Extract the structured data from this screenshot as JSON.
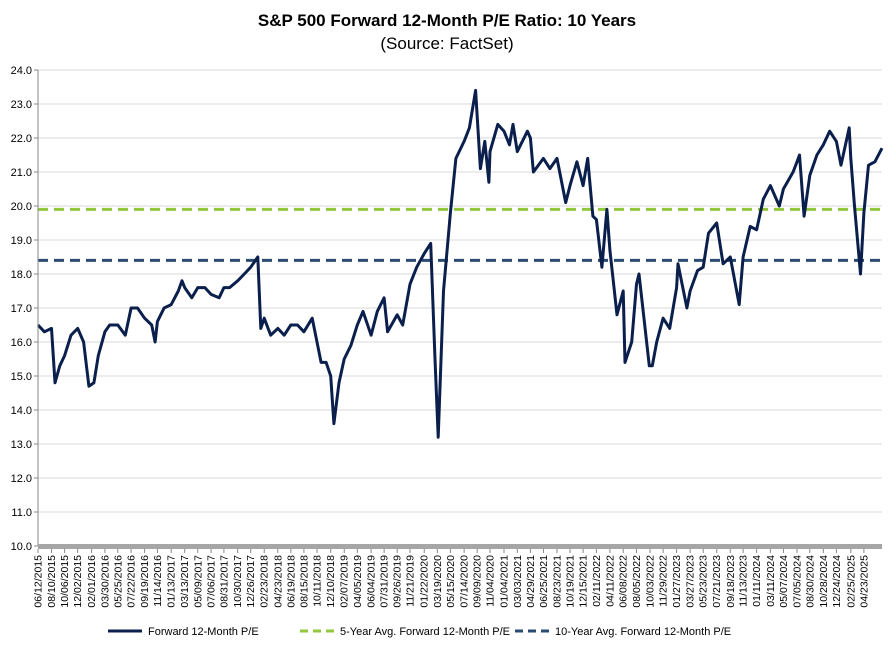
{
  "chart_data": {
    "type": "line",
    "title": "S&P 500 Forward 12-Month P/E Ratio: 10 Years",
    "subtitle": "(Source: FactSet)",
    "xlabel": "",
    "ylabel": "",
    "ylim": [
      10.0,
      24.0
    ],
    "y_ticks": [
      "10.0",
      "11.0",
      "12.0",
      "13.0",
      "14.0",
      "15.0",
      "16.0",
      "17.0",
      "18.0",
      "19.0",
      "20.0",
      "21.0",
      "22.0",
      "23.0",
      "24.0"
    ],
    "x_range": [
      "06/12/2015",
      "07/11/2025"
    ],
    "x_ticks": [
      "06/12/2015",
      "08/10/2015",
      "10/06/2015",
      "12/02/2015",
      "02/01/2016",
      "03/30/2016",
      "05/25/2016",
      "07/22/2016",
      "09/19/2016",
      "11/14/2016",
      "01/13/2017",
      "03/13/2017",
      "05/09/2017",
      "07/06/2017",
      "08/31/2017",
      "10/30/2017",
      "12/26/2017",
      "02/23/2018",
      "04/23/2018",
      "06/19/2018",
      "08/15/2018",
      "10/11/2018",
      "12/10/2018",
      "02/07/2019",
      "04/05/2019",
      "06/04/2019",
      "07/31/2019",
      "09/26/2019",
      "11/21/2019",
      "01/22/2020",
      "03/19/2020",
      "05/15/2020",
      "07/14/2020",
      "09/09/2020",
      "11/04/2020",
      "01/04/2021",
      "03/03/2021",
      "04/29/2021",
      "06/25/2021",
      "08/23/2021",
      "10/19/2021",
      "12/15/2021",
      "02/11/2022",
      "04/11/2022",
      "06/08/2022",
      "08/05/2022",
      "10/03/2022",
      "11/29/2022",
      "01/27/2023",
      "03/27/2023",
      "05/23/2023",
      "07/21/2023",
      "09/18/2023",
      "11/13/2023",
      "01/11/2024",
      "03/11/2024",
      "05/07/2024",
      "07/05/2024",
      "08/30/2024",
      "10/28/2024",
      "12/24/2024",
      "02/25/2025",
      "04/23/2025"
    ],
    "grid": "horizontal",
    "legend_position": "bottom",
    "series": [
      {
        "name": "Forward 12-Month P/E",
        "color": "#0b1f4d",
        "style": "solid",
        "points": [
          [
            "06/12/2015",
            16.5
          ],
          [
            "07/10/2015",
            16.3
          ],
          [
            "08/10/2015",
            16.4
          ],
          [
            "08/25/2015",
            14.8
          ],
          [
            "09/15/2015",
            15.3
          ],
          [
            "10/06/2015",
            15.6
          ],
          [
            "11/03/2015",
            16.2
          ],
          [
            "12/02/2015",
            16.4
          ],
          [
            "12/28/2015",
            16.0
          ],
          [
            "01/20/2016",
            14.7
          ],
          [
            "02/11/2016",
            14.8
          ],
          [
            "03/01/2016",
            15.6
          ],
          [
            "03/30/2016",
            16.3
          ],
          [
            "04/20/2016",
            16.5
          ],
          [
            "05/25/2016",
            16.5
          ],
          [
            "06/27/2016",
            16.2
          ],
          [
            "07/22/2016",
            17.0
          ],
          [
            "08/19/2016",
            17.0
          ],
          [
            "09/19/2016",
            16.7
          ],
          [
            "10/20/2016",
            16.5
          ],
          [
            "11/04/2016",
            16.0
          ],
          [
            "11/14/2016",
            16.6
          ],
          [
            "12/13/2016",
            17.0
          ],
          [
            "01/13/2017",
            17.1
          ],
          [
            "02/13/2017",
            17.5
          ],
          [
            "03/01/2017",
            17.8
          ],
          [
            "03/13/2017",
            17.6
          ],
          [
            "04/13/2017",
            17.3
          ],
          [
            "05/09/2017",
            17.6
          ],
          [
            "06/09/2017",
            17.6
          ],
          [
            "07/06/2017",
            17.4
          ],
          [
            "08/10/2017",
            17.3
          ],
          [
            "08/31/2017",
            17.6
          ],
          [
            "09/25/2017",
            17.6
          ],
          [
            "10/30/2017",
            17.8
          ],
          [
            "11/28/2017",
            18.0
          ],
          [
            "12/26/2017",
            18.2
          ],
          [
            "01/26/2018",
            18.5
          ],
          [
            "02/08/2018",
            16.4
          ],
          [
            "02/23/2018",
            16.7
          ],
          [
            "03/23/2018",
            16.2
          ],
          [
            "04/23/2018",
            16.4
          ],
          [
            "05/21/2018",
            16.2
          ],
          [
            "06/19/2018",
            16.5
          ],
          [
            "07/18/2018",
            16.5
          ],
          [
            "08/15/2018",
            16.3
          ],
          [
            "09/20/2018",
            16.7
          ],
          [
            "10/11/2018",
            16.0
          ],
          [
            "10/29/2018",
            15.4
          ],
          [
            "11/20/2018",
            15.4
          ],
          [
            "12/10/2018",
            15.0
          ],
          [
            "12/24/2018",
            13.6
          ],
          [
            "01/15/2019",
            14.8
          ],
          [
            "02/07/2019",
            15.5
          ],
          [
            "03/08/2019",
            15.9
          ],
          [
            "04/05/2019",
            16.5
          ],
          [
            "04/30/2019",
            16.9
          ],
          [
            "06/04/2019",
            16.2
          ],
          [
            "07/01/2019",
            16.9
          ],
          [
            "07/31/2019",
            17.3
          ],
          [
            "08/15/2019",
            16.3
          ],
          [
            "09/26/2019",
            16.8
          ],
          [
            "10/20/2019",
            16.5
          ],
          [
            "11/21/2019",
            17.7
          ],
          [
            "12/20/2019",
            18.2
          ],
          [
            "01/22/2020",
            18.6
          ],
          [
            "02/19/2020",
            18.9
          ],
          [
            "03/09/2020",
            15.5
          ],
          [
            "03/23/2020",
            13.2
          ],
          [
            "04/15/2020",
            17.5
          ],
          [
            "05/15/2020",
            19.8
          ],
          [
            "06/08/2020",
            21.4
          ],
          [
            "07/14/2020",
            21.9
          ],
          [
            "08/06/2020",
            22.3
          ],
          [
            "09/02/2020",
            23.4
          ],
          [
            "09/23/2020",
            21.1
          ],
          [
            "10/12/2020",
            21.9
          ],
          [
            "10/30/2020",
            20.7
          ],
          [
            "11/04/2020",
            21.6
          ],
          [
            "12/08/2020",
            22.4
          ],
          [
            "01/04/2021",
            22.2
          ],
          [
            "01/28/2021",
            21.8
          ],
          [
            "02/12/2021",
            22.4
          ],
          [
            "03/03/2021",
            21.6
          ],
          [
            "04/16/2021",
            22.2
          ],
          [
            "04/29/2021",
            22.0
          ],
          [
            "05/12/2021",
            21.0
          ],
          [
            "06/25/2021",
            21.4
          ],
          [
            "07/23/2021",
            21.1
          ],
          [
            "08/23/2021",
            21.4
          ],
          [
            "09/30/2021",
            20.1
          ],
          [
            "10/19/2021",
            20.6
          ],
          [
            "11/18/2021",
            21.3
          ],
          [
            "12/15/2021",
            20.6
          ],
          [
            "01/04/2022",
            21.4
          ],
          [
            "01/27/2022",
            19.7
          ],
          [
            "02/11/2022",
            19.6
          ],
          [
            "03/07/2022",
            18.2
          ],
          [
            "03/29/2022",
            19.9
          ],
          [
            "04/11/2022",
            18.7
          ],
          [
            "05/12/2022",
            16.8
          ],
          [
            "06/08/2022",
            17.5
          ],
          [
            "06/16/2022",
            15.4
          ],
          [
            "07/15/2022",
            16.0
          ],
          [
            "08/05/2022",
            17.7
          ],
          [
            "08/16/2022",
            18.0
          ],
          [
            "09/30/2022",
            15.3
          ],
          [
            "10/13/2022",
            15.3
          ],
          [
            "11/01/2022",
            16.0
          ],
          [
            "11/29/2022",
            16.7
          ],
          [
            "12/28/2022",
            16.4
          ],
          [
            "01/27/2023",
            17.6
          ],
          [
            "02/02/2023",
            18.3
          ],
          [
            "03/13/2023",
            17.0
          ],
          [
            "03/27/2023",
            17.5
          ],
          [
            "04/28/2023",
            18.1
          ],
          [
            "05/23/2023",
            18.2
          ],
          [
            "06/15/2023",
            19.2
          ],
          [
            "07/21/2023",
            19.5
          ],
          [
            "08/18/2023",
            18.3
          ],
          [
            "09/18/2023",
            18.5
          ],
          [
            "10/27/2023",
            17.1
          ],
          [
            "11/13/2023",
            18.5
          ],
          [
            "12/14/2023",
            19.4
          ],
          [
            "01/11/2024",
            19.3
          ],
          [
            "02/09/2024",
            20.2
          ],
          [
            "03/11/2024",
            20.6
          ],
          [
            "04/19/2024",
            20.0
          ],
          [
            "05/07/2024",
            20.5
          ],
          [
            "06/18/2024",
            21.0
          ],
          [
            "07/05/2024",
            21.3
          ],
          [
            "07/16/2024",
            21.5
          ],
          [
            "08/05/2024",
            19.7
          ],
          [
            "08/30/2024",
            20.9
          ],
          [
            "09/30/2024",
            21.5
          ],
          [
            "10/28/2024",
            21.8
          ],
          [
            "11/25/2024",
            22.2
          ],
          [
            "12/24/2024",
            21.9
          ],
          [
            "01/13/2025",
            21.2
          ],
          [
            "02/18/2025",
            22.3
          ],
          [
            "02/25/2025",
            21.4
          ],
          [
            "03/13/2025",
            20.0
          ],
          [
            "04/08/2025",
            18.0
          ],
          [
            "04/23/2025",
            19.8
          ],
          [
            "05/13/2025",
            21.2
          ],
          [
            "06/10/2025",
            21.3
          ],
          [
            "07/11/2025",
            21.7
          ]
        ]
      },
      {
        "name": "5-Year Avg. Forward 12-Month P/E",
        "color": "#92c83e",
        "style": "dashed",
        "value": 19.9
      },
      {
        "name": "10-Year Avg. Forward 12-Month P/E",
        "color": "#2b4c72",
        "style": "dashed",
        "value": 18.4
      }
    ]
  }
}
